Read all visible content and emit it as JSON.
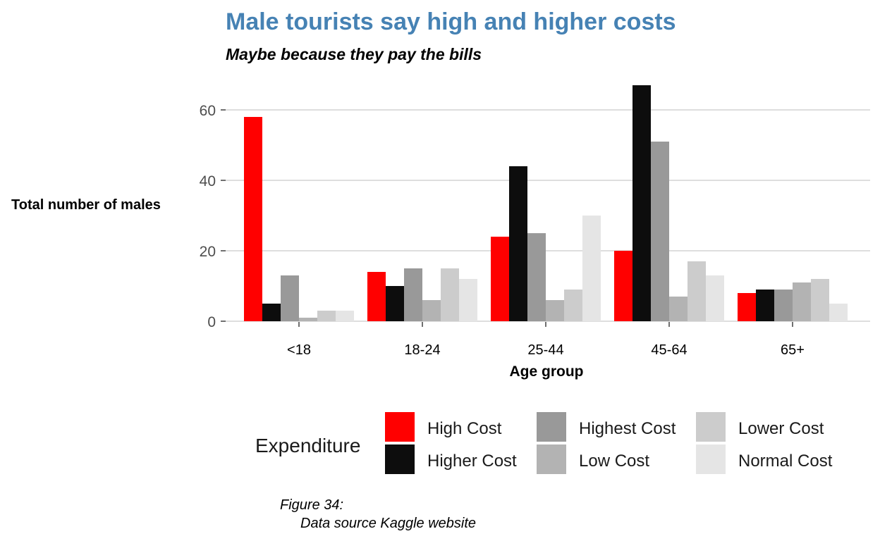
{
  "chart_data": {
    "type": "bar",
    "title": "Male tourists say high and higher costs",
    "subtitle": "Maybe because they pay the bills",
    "xlabel": "Age group",
    "ylabel": "Total number of males",
    "categories": [
      "<18",
      "18-24",
      "25-44",
      "45-64",
      "65+"
    ],
    "ylim": [
      0,
      70
    ],
    "yticks": [
      0,
      20,
      40,
      60
    ],
    "grid": "horizontal",
    "legend": {
      "title": "Expenditure",
      "placement": "bottom"
    },
    "series": [
      {
        "name": "High Cost",
        "color": "#ff0000",
        "values": [
          58,
          14,
          24,
          20,
          8
        ]
      },
      {
        "name": "Higher Cost",
        "color": "#0d0d0d",
        "values": [
          5,
          10,
          44,
          67,
          9
        ]
      },
      {
        "name": "Highest Cost",
        "color": "#999999",
        "values": [
          13,
          15,
          25,
          51,
          9
        ]
      },
      {
        "name": "Low Cost",
        "color": "#b3b3b3",
        "values": [
          1,
          6,
          6,
          7,
          11
        ]
      },
      {
        "name": "Lower Cost",
        "color": "#cccccc",
        "values": [
          3,
          15,
          9,
          17,
          12
        ]
      },
      {
        "name": "Normal Cost",
        "color": "#e5e5e5",
        "values": [
          3,
          12,
          30,
          13,
          5
        ]
      }
    ],
    "title_color": "#4682b4",
    "grid_color": "#d3d3d3"
  },
  "caption": {
    "line1": "Figure 34:",
    "line2": "Data source Kaggle website"
  }
}
